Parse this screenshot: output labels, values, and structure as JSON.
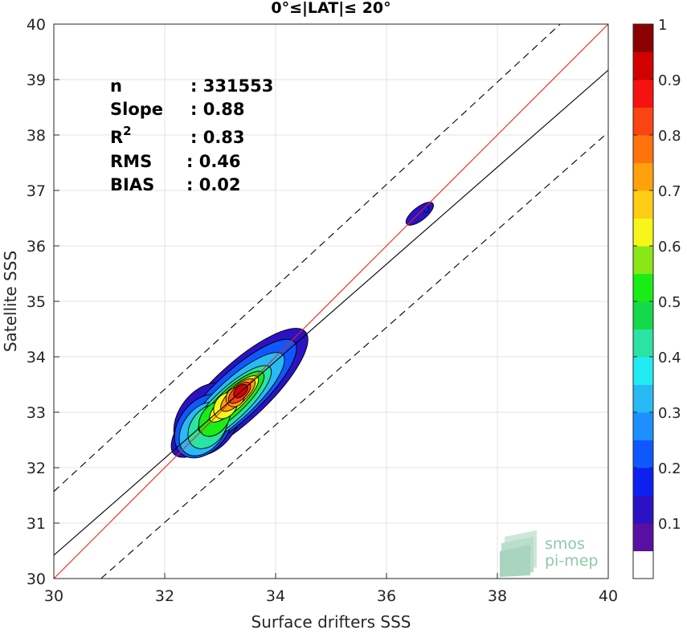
{
  "chart_data": {
    "type": "heatmap",
    "title": "0°≤|LAT|≤ 20°",
    "xlabel": "Surface drifters SSS",
    "ylabel": "Satellite SSS",
    "xlim": [
      30,
      40
    ],
    "ylim": [
      30,
      40
    ],
    "x_ticks": [
      "30",
      "32",
      "34",
      "36",
      "38",
      "40"
    ],
    "y_ticks": [
      "30",
      "31",
      "32",
      "33",
      "34",
      "35",
      "36",
      "37",
      "38",
      "39",
      "40"
    ],
    "grid": true,
    "stats": [
      {
        "label": "n",
        "value": ": 331553"
      },
      {
        "label": "Slope",
        "value": ": 0.88"
      },
      {
        "label": "R",
        "sup": "2",
        "value": ": 0.83"
      },
      {
        "label": "RMS",
        "value": ": 0.46"
      },
      {
        "label": "BIAS",
        "value": ": 0.02"
      }
    ],
    "lines": [
      {
        "name": "identity",
        "color": "#e8231f",
        "points": [
          [
            30,
            30
          ],
          [
            40,
            40
          ]
        ]
      },
      {
        "name": "regression",
        "color": "#000000",
        "points": [
          [
            30,
            30.42
          ],
          [
            40,
            39.17
          ]
        ]
      },
      {
        "name": "regression+2rms",
        "color": "#000000",
        "dashed": true,
        "points": [
          [
            30,
            31.57
          ],
          [
            40,
            40.8
          ]
        ]
      },
      {
        "name": "regression-2rms",
        "color": "#000000",
        "dashed": true,
        "points": [
          [
            30.85,
            30
          ],
          [
            40,
            38.05
          ]
        ]
      }
    ],
    "density_peaks": [
      {
        "x": 33.35,
        "y": 33.35,
        "value": 1.0
      },
      {
        "x": 32.5,
        "y": 32.7,
        "value": 0.5
      },
      {
        "x": 36.7,
        "y": 36.6,
        "value": 0.1
      }
    ],
    "colorbar": {
      "range": [
        0,
        1
      ],
      "ticks": [
        "0.1",
        "0.2",
        "0.3",
        "0.4",
        "0.5",
        "0.6",
        "0.7",
        "0.8",
        "0.9",
        "1"
      ],
      "colors": [
        "#ffffff",
        "#5a0fa3",
        "#2b12c4",
        "#0d20f0",
        "#0f58ff",
        "#1e8fff",
        "#27baf5",
        "#21ecf4",
        "#2be3a2",
        "#13d94b",
        "#19ec16",
        "#8ae617",
        "#f6f61a",
        "#ffcd16",
        "#ffa10c",
        "#ff730d",
        "#fb4413",
        "#f71211",
        "#d30000",
        "#8b0000"
      ]
    }
  },
  "watermark": {
    "line1": "smos",
    "line2": "pi-mep"
  }
}
